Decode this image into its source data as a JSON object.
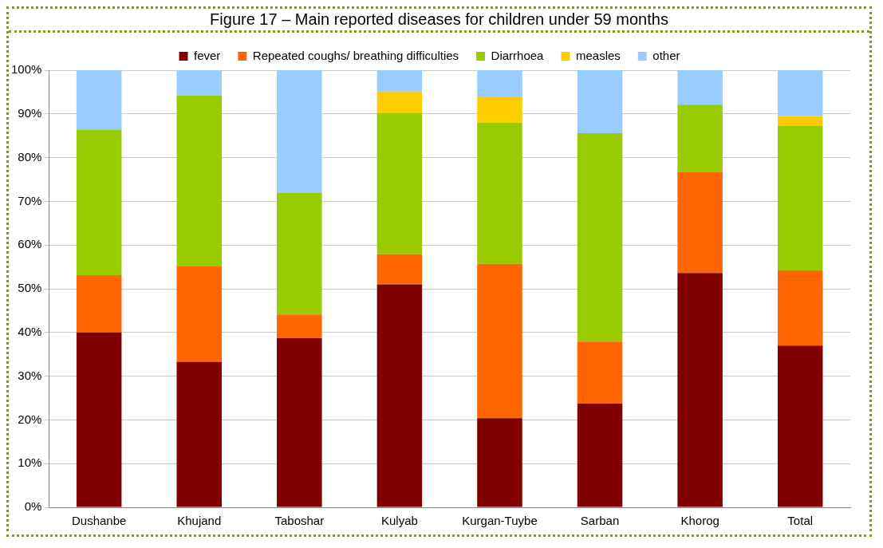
{
  "chart_data": {
    "type": "bar",
    "title": "Figure 17 – Main reported diseases for children under 59 months",
    "categories": [
      "Dushanbe",
      "Khujand",
      "Taboshar",
      "Kulyab",
      "Kurgan-Tuybe",
      "Sarban",
      "Khorog",
      "Total"
    ],
    "series": [
      {
        "name": "fever",
        "color": "#800000",
        "values": [
          40.0,
          33.3,
          38.7,
          51.0,
          20.4,
          23.7,
          53.6,
          37.0
        ]
      },
      {
        "name": "Repeated coughs/ breathing difficulties",
        "color": "#ff6600",
        "values": [
          13.1,
          21.8,
          5.4,
          6.9,
          35.3,
          14.2,
          23.2,
          17.2
        ]
      },
      {
        "name": "Diarrhoea",
        "color": "#99cc00",
        "values": [
          33.3,
          39.1,
          27.9,
          32.4,
          32.3,
          47.7,
          15.3,
          33.1
        ]
      },
      {
        "name": "measles",
        "color": "#ffcc00",
        "values": [
          0,
          0,
          0,
          4.8,
          6.0,
          0,
          0,
          2.2
        ]
      },
      {
        "name": "other",
        "color": "#99ccff",
        "values": [
          13.6,
          5.8,
          28.0,
          4.9,
          6.0,
          14.4,
          7.9,
          10.5
        ]
      }
    ],
    "stacked": true,
    "ylim": [
      0,
      100
    ],
    "yticks": [
      {
        "value": 0,
        "label": "0%"
      },
      {
        "value": 10,
        "label": "10%"
      },
      {
        "value": 20,
        "label": "20%"
      },
      {
        "value": 30,
        "label": "30%"
      },
      {
        "value": 40,
        "label": "40%"
      },
      {
        "value": 50,
        "label": "50%"
      },
      {
        "value": 60,
        "label": "60%"
      },
      {
        "value": 70,
        "label": "70%"
      },
      {
        "value": 80,
        "label": "80%"
      },
      {
        "value": 90,
        "label": "90%"
      },
      {
        "value": 100,
        "label": "100%"
      }
    ],
    "grid": "y",
    "legend": "top"
  }
}
